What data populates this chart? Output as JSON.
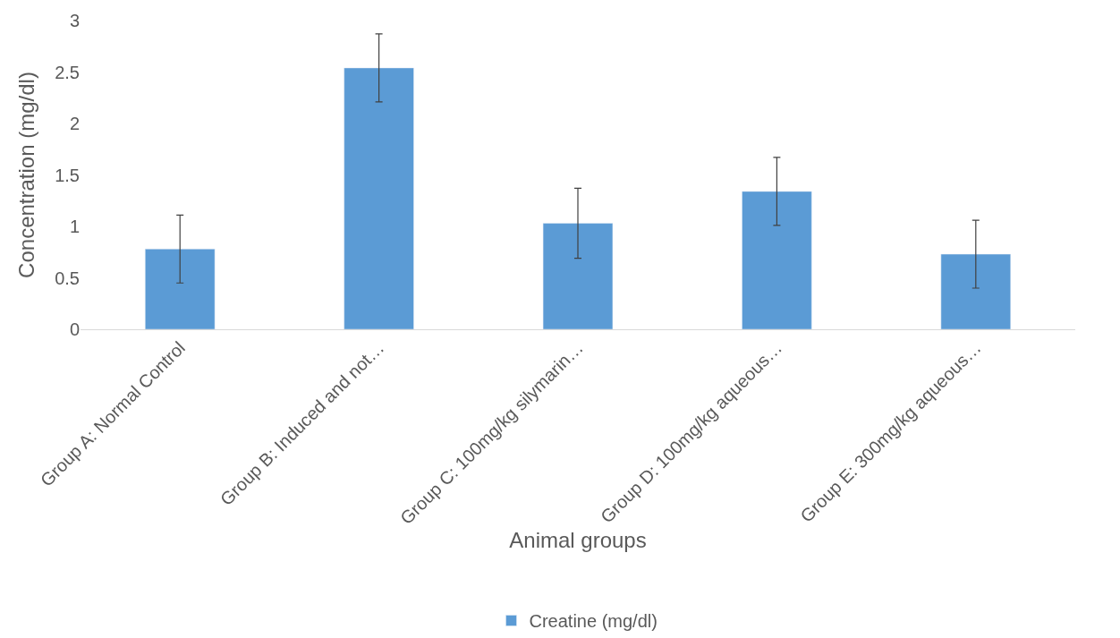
{
  "chart_data": {
    "type": "bar",
    "xlabel": "Animal groups",
    "ylabel": "Concentration (mg/dl)",
    "categories": [
      "Group A: Normal Control",
      "Group B: Induced and not…",
      "Group C: 100mg/kg silymarin…",
      "Group D: 100mg/kg aqueous…",
      "Group E: 300mg/kg aqueous…"
    ],
    "series": [
      {
        "name": "Creatine (mg/dl)",
        "color": "#5b9bd5",
        "values": [
          0.78,
          2.54,
          1.03,
          1.34,
          0.73
        ],
        "errors": [
          0.33,
          0.33,
          0.34,
          0.33,
          0.33
        ]
      }
    ],
    "ylim": [
      0,
      3
    ],
    "yticks": [
      0,
      0.5,
      1,
      1.5,
      2,
      2.5,
      3
    ],
    "grid": false,
    "legend": "bottom"
  }
}
